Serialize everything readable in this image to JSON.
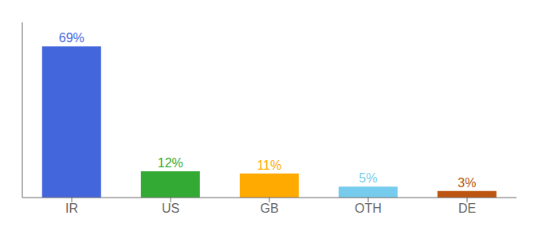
{
  "chart_data": {
    "type": "bar",
    "categories": [
      "IR",
      "US",
      "GB",
      "OTH",
      "DE"
    ],
    "values": [
      69,
      12,
      11,
      5,
      3
    ],
    "value_labels": [
      "69%",
      "12%",
      "11%",
      "5%",
      "3%"
    ],
    "colors": [
      "#4466dd",
      "#33aa33",
      "#ffaa00",
      "#77ccee",
      "#bb5511"
    ],
    "ylim": [
      0,
      80
    ],
    "data_labels": true,
    "tick_labels": "x",
    "grid": false
  }
}
